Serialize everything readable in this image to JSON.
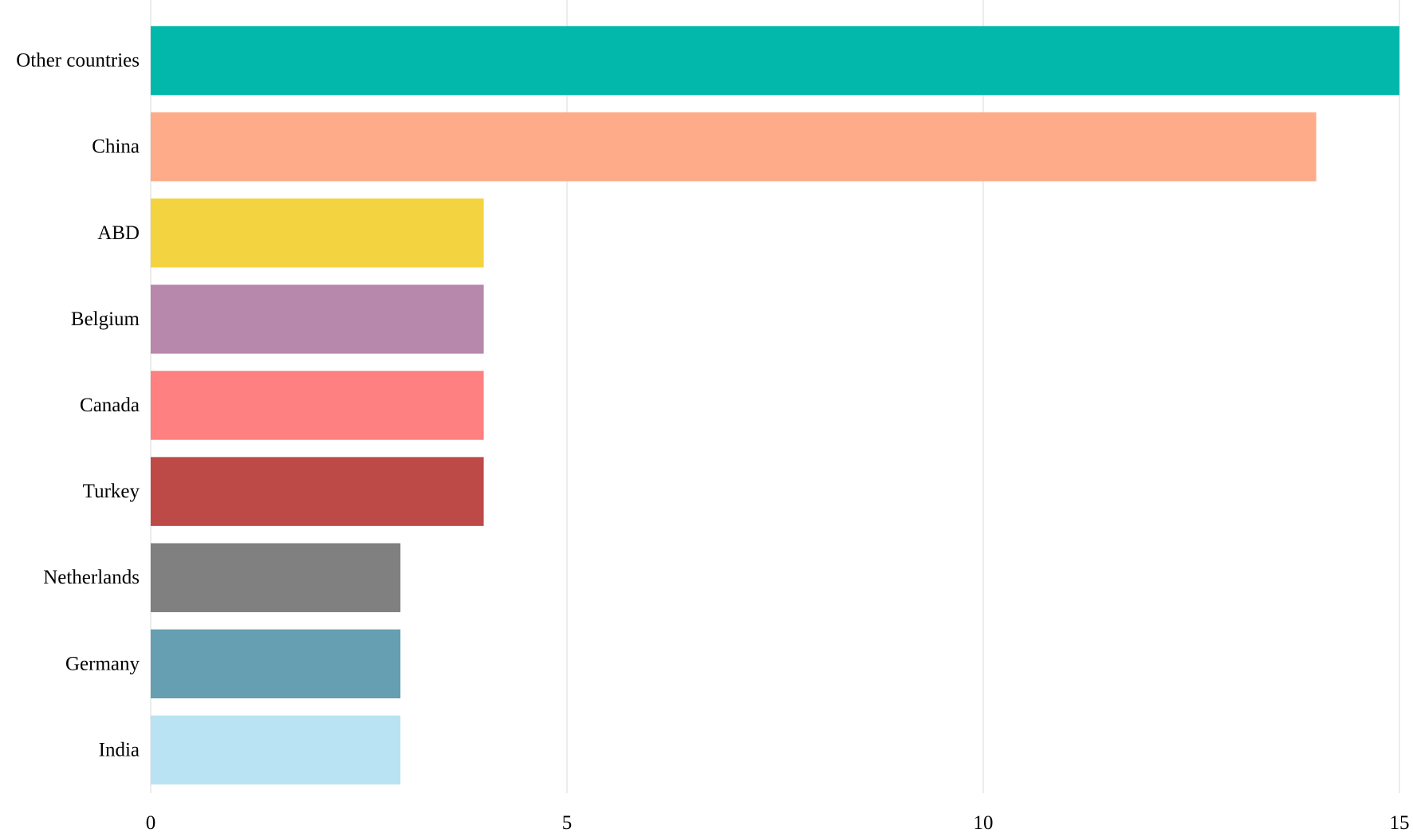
{
  "chart_data": {
    "type": "bar",
    "orientation": "horizontal",
    "title": "",
    "xlabel": "",
    "ylabel": "",
    "categories": [
      "Other countries",
      "China",
      "ABD",
      "Belgium",
      "Canada",
      "Turkey",
      "Netherlands",
      "Germany",
      "India"
    ],
    "values": [
      15,
      14,
      4,
      4,
      4,
      4,
      3,
      3,
      3
    ],
    "colors": [
      "#02b8aa",
      "#fdab89",
      "#f4d341",
      "#b787ac",
      "#fe8080",
      "#be4a48",
      "#808080",
      "#669fb1",
      "#b9e3f2"
    ],
    "xlim": [
      0,
      15
    ],
    "xticks": [
      0,
      5,
      10,
      15
    ],
    "grid": true,
    "legend": "none"
  }
}
